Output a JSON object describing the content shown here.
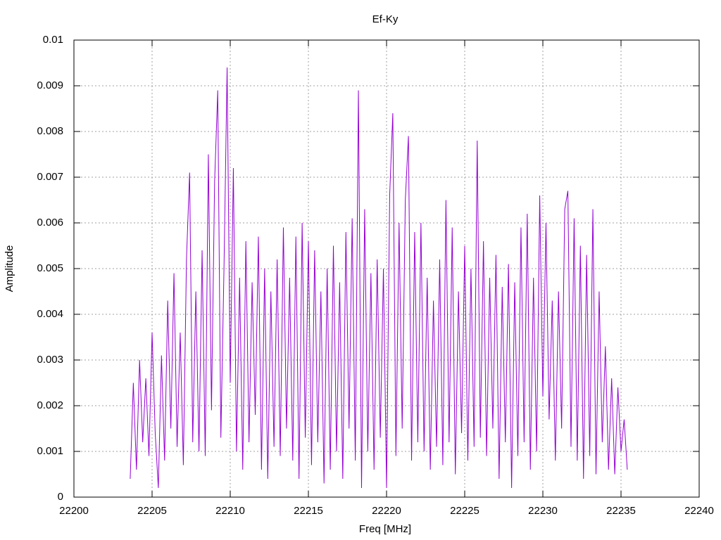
{
  "chart_data": {
    "type": "line",
    "title": "Ef-Ky",
    "xlabel": "Freq [MHz]",
    "ylabel": "Amplitude",
    "xlim": [
      22200,
      22240
    ],
    "xticks": [
      22200,
      22205,
      22210,
      22215,
      22220,
      22225,
      22230,
      22235,
      22240
    ],
    "ylim": [
      0,
      0.01
    ],
    "yticks": [
      0,
      0.001,
      0.002,
      0.003,
      0.004,
      0.005,
      0.006,
      0.007,
      0.008,
      0.009,
      0.01
    ],
    "grid": true,
    "x": [
      22203.6,
      22203.8,
      22204,
      22204.2,
      22204.4,
      22204.6,
      22204.8,
      22205,
      22205.2,
      22205.4,
      22205.6,
      22205.8,
      22206,
      22206.2,
      22206.4,
      22206.6,
      22206.8,
      22207,
      22207.2,
      22207.4,
      22207.6,
      22207.8,
      22208,
      22208.2,
      22208.4,
      22208.6,
      22208.8,
      22209,
      22209.2,
      22209.4,
      22209.6,
      22209.8,
      22210,
      22210.2,
      22210.4,
      22210.6,
      22210.8,
      22211,
      22211.2,
      22211.4,
      22211.6,
      22211.8,
      22212,
      22212.2,
      22212.4,
      22212.6,
      22212.8,
      22213,
      22213.2,
      22213.4,
      22213.6,
      22213.8,
      22214,
      22214.2,
      22214.4,
      22214.6,
      22214.8,
      22215,
      22215.2,
      22215.4,
      22215.6,
      22215.8,
      22216,
      22216.2,
      22216.4,
      22216.6,
      22216.8,
      22217,
      22217.2,
      22217.4,
      22217.6,
      22217.8,
      22218,
      22218.2,
      22218.4,
      22218.6,
      22218.8,
      22219,
      22219.2,
      22219.4,
      22219.6,
      22219.8,
      22220,
      22220.2,
      22220.4,
      22220.6,
      22220.8,
      22221,
      22221.2,
      22221.4,
      22221.6,
      22221.8,
      22222,
      22222.2,
      22222.4,
      22222.6,
      22222.8,
      22223,
      22223.2,
      22223.4,
      22223.6,
      22223.8,
      22224,
      22224.2,
      22224.4,
      22224.6,
      22224.8,
      22225,
      22225.2,
      22225.4,
      22225.6,
      22225.8,
      22226,
      22226.2,
      22226.4,
      22226.6,
      22226.8,
      22227,
      22227.2,
      22227.4,
      22227.6,
      22227.8,
      22228,
      22228.2,
      22228.4,
      22228.6,
      22228.8,
      22229,
      22229.2,
      22229.4,
      22229.6,
      22229.8,
      22230,
      22230.2,
      22230.4,
      22230.6,
      22230.8,
      22231,
      22231.2,
      22231.4,
      22231.6,
      22231.8,
      22232,
      22232.2,
      22232.4,
      22232.6,
      22232.8,
      22233,
      22233.2,
      22233.4,
      22233.6,
      22233.8,
      22234,
      22234.2,
      22234.4,
      22234.6,
      22234.8,
      22235,
      22235.2,
      22235.4
    ],
    "series": [
      {
        "name": "Ef-Ky",
        "color": "#9400d3",
        "values": [
          0.0004,
          0.0025,
          0.0006,
          0.003,
          0.0012,
          0.0026,
          0.0009,
          0.0036,
          0.0014,
          0.0002,
          0.0031,
          0.0008,
          0.0043,
          0.0015,
          0.0049,
          0.0011,
          0.0036,
          0.0007,
          0.0052,
          0.0071,
          0.0012,
          0.0045,
          0.001,
          0.0054,
          0.0009,
          0.0075,
          0.0019,
          0.0069,
          0.0089,
          0.0013,
          0.005,
          0.0094,
          0.0025,
          0.0072,
          0.001,
          0.0048,
          0.0006,
          0.0056,
          0.0012,
          0.0047,
          0.0018,
          0.0057,
          0.0006,
          0.005,
          0.0004,
          0.0045,
          0.0011,
          0.0052,
          0.0009,
          0.0059,
          0.0015,
          0.0048,
          0.0008,
          0.0057,
          0.0004,
          0.006,
          0.0013,
          0.0056,
          0.0007,
          0.0054,
          0.0012,
          0.0045,
          0.0003,
          0.005,
          0.0006,
          0.0055,
          0.001,
          0.0047,
          0.0004,
          0.0058,
          0.0015,
          0.0061,
          0.0008,
          0.0089,
          0.0002,
          0.0063,
          0.001,
          0.0049,
          0.0006,
          0.0052,
          0.0013,
          0.005,
          0.0002,
          0.0066,
          0.0084,
          0.0009,
          0.006,
          0.0015,
          0.0065,
          0.0079,
          0.0008,
          0.0058,
          0.0012,
          0.006,
          0.001,
          0.0048,
          0.0006,
          0.0043,
          0.0011,
          0.0052,
          0.0007,
          0.0065,
          0.0012,
          0.0059,
          0.0005,
          0.0045,
          0.0014,
          0.0055,
          0.0008,
          0.005,
          0.0011,
          0.0078,
          0.0013,
          0.0056,
          0.0009,
          0.0048,
          0.0015,
          0.0053,
          0.0004,
          0.0046,
          0.0012,
          0.0051,
          0.0002,
          0.0047,
          0.0009,
          0.0059,
          0.0012,
          0.0062,
          0.0006,
          0.0048,
          0.001,
          0.0066,
          0.0022,
          0.006,
          0.0017,
          0.0043,
          0.0008,
          0.0045,
          0.0015,
          0.0063,
          0.0067,
          0.0011,
          0.0061,
          0.0008,
          0.0055,
          0.0004,
          0.0053,
          0.0009,
          0.0063,
          0.0005,
          0.0045,
          0.0012,
          0.0033,
          0.0006,
          0.0026,
          0.0005,
          0.0024,
          0.001,
          0.0017,
          0.0006
        ]
      }
    ]
  }
}
